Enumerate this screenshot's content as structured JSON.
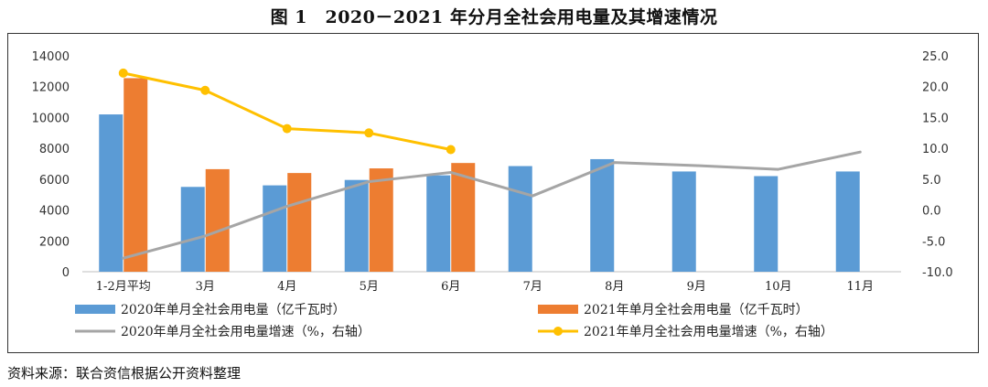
{
  "title": "图 1　2020－2021 年分月全社会用电量及其增速情况",
  "source": "资料来源：联合资信根据公开资料整理",
  "chart_data": {
    "type": "bar",
    "categories": [
      "1-2月平均",
      "3月",
      "4月",
      "5月",
      "6月",
      "7月",
      "8月",
      "9月",
      "10月",
      "11月"
    ],
    "y_left": {
      "ticks": [
        "0",
        "2000",
        "4000",
        "6000",
        "8000",
        "10000",
        "12000",
        "14000"
      ],
      "range": [
        0,
        14000
      ]
    },
    "y_right": {
      "ticks": [
        "-10.0",
        "-5.0",
        "0.0",
        "5.0",
        "10.0",
        "15.0",
        "20.0",
        "25.0"
      ],
      "range": [
        -10,
        25
      ]
    },
    "grid": false,
    "legend_position": "bottom",
    "bar_series": [
      {
        "name": "2020年单月全社会用电量（亿千瓦时）",
        "color": "#5B9BD5",
        "values": [
          10200,
          5500,
          5600,
          5950,
          6250,
          6850,
          7300,
          6500,
          6200,
          6500
        ]
      },
      {
        "name": "2021年单月全社会用电量（亿千瓦时）",
        "color": "#ED7D31",
        "values": [
          12550,
          6650,
          6400,
          6700,
          7050,
          null,
          null,
          null,
          null,
          null
        ]
      }
    ],
    "line_series": [
      {
        "name": "2020年单月全社会用电量增速（%，右轴）",
        "color": "#A5A5A5",
        "markers": false,
        "values": [
          -7.8,
          -4.2,
          0.6,
          4.6,
          6.1,
          2.3,
          7.7,
          7.2,
          6.6,
          9.4
        ]
      },
      {
        "name": "2021年单月全社会用电量增速（%，右轴）",
        "color": "#FFC000",
        "markers": true,
        "values": [
          22.2,
          19.4,
          13.2,
          12.5,
          9.8,
          null,
          null,
          null,
          null,
          null
        ]
      }
    ]
  }
}
